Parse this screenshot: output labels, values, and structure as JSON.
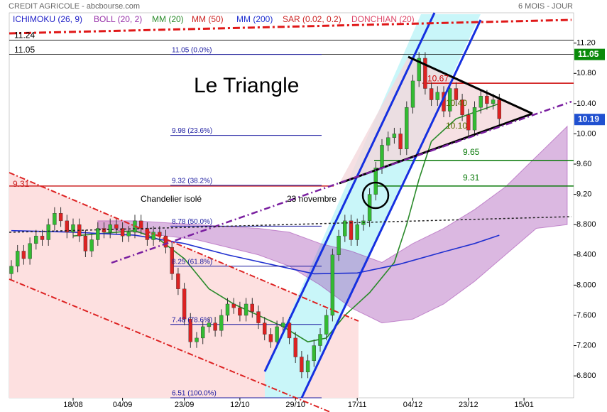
{
  "chart_data": {
    "type": "candlestick",
    "title": "CREDIT AGRICOLE - abcbourse.com",
    "subtitle": "6 MOIS - JOUR",
    "annotations": [
      {
        "text": "Le Triangle"
      },
      {
        "text": "Chandelier isolé"
      },
      {
        "text": "23 novembre"
      }
    ],
    "indicators": [
      {
        "name": "ICHIMOKU (26, 9)",
        "color": "#2020c8"
      },
      {
        "name": "BOLL (20, 2)",
        "color": "#9933aa",
        "x": [
          14,
          20,
          30,
          40,
          45,
          50,
          55,
          60,
          65,
          70,
          75,
          80,
          85,
          90
        ],
        "upper": [
          8.85,
          8.85,
          8.8,
          8.75,
          8.7,
          8.55,
          8.45,
          8.3,
          8.55,
          8.75,
          9.0,
          9.3,
          9.7,
          10.1
        ],
        "lower": [
          8.75,
          8.7,
          8.6,
          8.4,
          8.25,
          8.0,
          7.7,
          7.5,
          7.55,
          7.75,
          8.05,
          8.4,
          8.75,
          8.8
        ]
      },
      {
        "name": "MM (20)",
        "color": "#2a8a2a",
        "x": [
          10,
          20,
          24,
          28,
          32,
          36,
          40,
          44,
          48,
          51,
          54,
          58,
          62,
          64,
          66,
          68,
          72,
          79
        ],
        "values": [
          8.65,
          8.72,
          8.6,
          8.35,
          7.95,
          7.75,
          7.6,
          7.45,
          7.25,
          7.3,
          7.6,
          7.9,
          8.3,
          8.8,
          9.4,
          9.9,
          10.2,
          10.4
        ]
      },
      {
        "name": "MM (50)",
        "color": "#cc2222"
      },
      {
        "name": "MM (200)",
        "color": "#2030d0",
        "x": [
          0,
          10,
          20,
          28,
          35,
          45,
          49,
          56,
          63,
          70,
          75,
          79
        ],
        "values": [
          8.72,
          8.7,
          8.66,
          8.55,
          8.4,
          8.22,
          8.15,
          8.16,
          8.28,
          8.44,
          8.55,
          8.66
        ]
      },
      {
        "name": "SAR (0.02, 0.2)",
        "color": "#cc2222"
      },
      {
        "name": "DONCHIAN (20)",
        "color": "#dd4466"
      }
    ],
    "categories": [
      null,
      null,
      null,
      null,
      null,
      null,
      null,
      null,
      null,
      null,
      "18/08",
      null,
      null,
      null,
      null,
      null,
      null,
      null,
      "04/09",
      null,
      null,
      null,
      null,
      null,
      null,
      null,
      null,
      null,
      "23/09",
      null,
      null,
      null,
      null,
      null,
      null,
      null,
      null,
      "12/10",
      null,
      null,
      null,
      null,
      null,
      null,
      null,
      null,
      "29/10",
      null,
      null,
      null,
      null,
      null,
      null,
      null,
      null,
      null,
      "17/11",
      null,
      null,
      null,
      null,
      null,
      null,
      null,
      null,
      "04/12",
      null,
      null,
      null,
      null,
      null,
      null,
      null,
      null,
      "23/12",
      null,
      null,
      null,
      null,
      null,
      null,
      null,
      null,
      "15/01"
    ],
    "open": [
      8.15,
      8.25,
      8.45,
      8.35,
      8.55,
      8.65,
      8.6,
      8.8,
      8.95,
      8.85,
      8.7,
      8.8,
      8.65,
      8.45,
      8.6,
      8.75,
      8.7,
      8.8,
      8.75,
      8.65,
      8.7,
      8.85,
      8.75,
      8.6,
      8.7,
      8.65,
      8.5,
      8.15,
      7.95,
      7.55,
      7.25,
      7.3,
      7.45,
      7.5,
      7.4,
      7.6,
      7.75,
      7.7,
      7.6,
      7.75,
      7.65,
      7.5,
      7.35,
      7.25,
      7.45,
      7.5,
      7.3,
      7.05,
      6.85,
      7.0,
      7.2,
      7.35,
      7.6,
      8.4,
      8.65,
      8.85,
      8.6,
      8.8,
      8.85,
      9.2,
      9.55,
      9.85,
      9.95,
      10.0,
      9.8,
      10.35,
      10.7,
      11.0,
      10.6,
      10.45,
      10.55,
      10.3,
      10.6,
      10.45,
      10.25,
      10.05,
      10.35,
      10.5,
      10.4,
      10.45,
      null,
      null,
      null,
      null
    ],
    "high": [
      8.33,
      8.53,
      8.53,
      8.63,
      8.73,
      8.73,
      8.88,
      9.03,
      9.03,
      8.93,
      8.88,
      8.88,
      8.73,
      8.68,
      8.83,
      8.83,
      8.88,
      8.88,
      8.83,
      8.78,
      8.93,
      8.93,
      8.83,
      8.78,
      8.78,
      8.73,
      8.58,
      8.23,
      8.03,
      7.63,
      7.38,
      7.53,
      7.58,
      7.58,
      7.68,
      7.83,
      7.83,
      7.78,
      7.83,
      7.83,
      7.73,
      7.58,
      7.43,
      7.53,
      7.58,
      7.58,
      7.38,
      7.13,
      7.08,
      7.28,
      7.43,
      7.68,
      8.48,
      8.73,
      8.93,
      8.93,
      8.88,
      8.93,
      9.28,
      9.63,
      9.93,
      10.03,
      10.08,
      10.08,
      10.43,
      10.78,
      11.08,
      11.08,
      10.68,
      10.63,
      10.63,
      10.68,
      10.68,
      10.53,
      10.33,
      10.43,
      10.58,
      10.58,
      10.53,
      10.53,
      null,
      null,
      null,
      null
    ],
    "low": [
      8.07,
      8.17,
      8.27,
      8.27,
      8.47,
      8.52,
      8.52,
      8.72,
      8.77,
      8.62,
      8.62,
      8.57,
      8.37,
      8.37,
      8.52,
      8.62,
      8.62,
      8.67,
      8.57,
      8.57,
      8.62,
      8.67,
      8.52,
      8.52,
      8.57,
      8.42,
      8.07,
      7.87,
      7.47,
      7.17,
      7.17,
      7.22,
      7.37,
      7.32,
      7.32,
      7.52,
      7.62,
      7.52,
      7.52,
      7.57,
      7.42,
      7.27,
      7.17,
      7.17,
      7.37,
      7.22,
      6.97,
      6.77,
      6.77,
      6.92,
      7.12,
      7.27,
      7.52,
      8.32,
      8.57,
      8.52,
      8.52,
      8.72,
      8.77,
      9.12,
      9.47,
      9.77,
      9.87,
      9.72,
      9.72,
      10.27,
      10.62,
      10.52,
      10.37,
      10.37,
      10.22,
      10.22,
      10.37,
      10.17,
      9.97,
      9.97,
      10.27,
      10.32,
      10.32,
      10.12,
      null,
      null,
      null,
      null
    ],
    "close": [
      8.25,
      8.45,
      8.35,
      8.55,
      8.65,
      8.6,
      8.8,
      8.95,
      8.85,
      8.7,
      8.8,
      8.65,
      8.45,
      8.6,
      8.75,
      8.7,
      8.8,
      8.75,
      8.65,
      8.7,
      8.85,
      8.75,
      8.6,
      8.7,
      8.65,
      8.5,
      8.15,
      7.95,
      7.55,
      7.25,
      7.3,
      7.45,
      7.5,
      7.4,
      7.6,
      7.75,
      7.7,
      7.6,
      7.75,
      7.65,
      7.5,
      7.35,
      7.25,
      7.45,
      7.5,
      7.3,
      7.05,
      6.85,
      7.0,
      7.2,
      7.35,
      7.6,
      8.4,
      8.65,
      8.85,
      8.6,
      8.8,
      8.85,
      9.2,
      9.55,
      9.85,
      9.95,
      10.0,
      9.8,
      10.35,
      10.7,
      11.0,
      10.6,
      10.45,
      10.55,
      10.3,
      10.6,
      10.45,
      10.25,
      10.05,
      10.35,
      10.5,
      10.4,
      10.45,
      10.2,
      null,
      null,
      null,
      null
    ],
    "up_color": "#33bb33",
    "down_color": "#dd2222",
    "ylim": [
      6.51,
      11.77
    ],
    "yticks": [
      {
        "value": 11.2,
        "label": "11.20"
      },
      {
        "value": 10.8,
        "label": "10.80"
      },
      {
        "value": 10.4,
        "label": "10.40"
      },
      {
        "value": 10,
        "label": "10.00"
      },
      {
        "value": 9.6,
        "label": "9.60"
      },
      {
        "value": 9.2,
        "label": "9.20"
      },
      {
        "value": 8.8,
        "label": "8.800"
      },
      {
        "value": 8.4,
        "label": "8.400"
      },
      {
        "value": 8,
        "label": "8.000"
      },
      {
        "value": 7.6,
        "label": "7.600"
      },
      {
        "value": 7.2,
        "label": "7.200"
      },
      {
        "value": 6.8,
        "label": "6.800"
      }
    ],
    "fibonacci": [
      {
        "value": 11.05,
        "label": "11.05 (0.0%)"
      },
      {
        "value": 9.98,
        "label": "9.98 (23.6%)"
      },
      {
        "value": 9.32,
        "label": "9.32 (38.2%)"
      },
      {
        "value": 8.78,
        "label": "8.78 (50.0%)"
      },
      {
        "value": 8.25,
        "label": "8.25 (61.8%)"
      },
      {
        "value": 7.48,
        "label": "7.48 (78.6%)"
      },
      {
        "value": 6.51,
        "label": "6.51 (100.0%)"
      }
    ],
    "hlines": [
      {
        "value": 11.24,
        "label": "11.24",
        "color": "#000000"
      },
      {
        "value": 11.05,
        "label": "11.05",
        "color": "#000000"
      },
      {
        "value": 10.67,
        "label": "10.67",
        "color": "#cc0000"
      },
      {
        "value": 9.65,
        "label": "9.65",
        "color": "#0a7a0a"
      },
      {
        "value": 9.31,
        "label": "9.31",
        "color": "#0a7a0a"
      },
      {
        "value": 9.31,
        "label": "9.31",
        "color": "#cc2222"
      }
    ],
    "levels": [
      {
        "value": 10.4,
        "label": "10.40",
        "color": "#556b00"
      },
      {
        "value": 10.1,
        "label": "10.10",
        "color": "#556b00"
      }
    ],
    "price_tags": [
      {
        "value": 11.05,
        "label": "11.05",
        "color": "#0a8a0a"
      },
      {
        "value": 10.19,
        "label": "10.19",
        "color": "#2050d0"
      }
    ]
  }
}
